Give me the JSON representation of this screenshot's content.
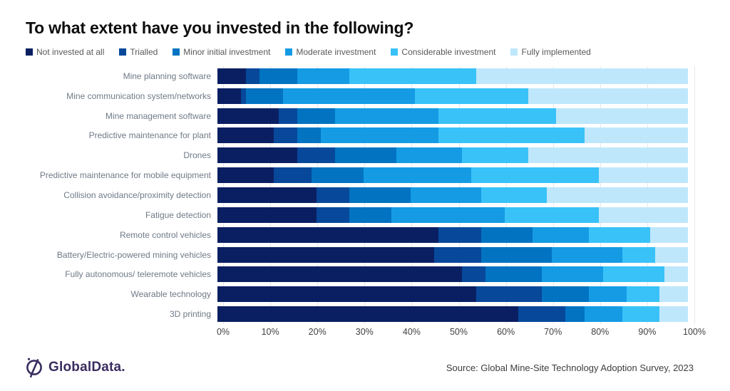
{
  "title": "To what extent have you invested in the following?",
  "chart_data": {
    "type": "bar",
    "variant": "horizontal-stacked",
    "unit": "%",
    "title": "To what extent have you invested in the following?",
    "xlabel": "",
    "ylabel": "",
    "xlim": [
      0,
      100
    ],
    "x_ticks": [
      "0%",
      "10%",
      "20%",
      "30%",
      "40%",
      "50%",
      "60%",
      "70%",
      "80%",
      "90%",
      "100%"
    ],
    "grid": "vertical",
    "legend_position": "top",
    "categories": [
      "Mine planning software",
      "Mine communication system/networks",
      "Mine management software",
      "Predictive maintenance for plant",
      "Drones",
      "Predictive maintenance for mobile equipment",
      "Collision avoidance/proximity detection",
      "Fatigue detection",
      "Remote control vehicles",
      "Battery/Electric-powered mining vehicles",
      "Fully autonomous/ teleremote vehicles",
      "Wearable technology",
      "3D printing"
    ],
    "series": [
      {
        "name": "Not invested at all",
        "color": "#0A1F62",
        "values": [
          6,
          5,
          13,
          12,
          17,
          12,
          21,
          21,
          47,
          46,
          52,
          55,
          64
        ]
      },
      {
        "name": "Trialled",
        "color": "#07489A",
        "values": [
          3,
          1,
          4,
          5,
          8,
          8,
          7,
          7,
          9,
          10,
          5,
          14,
          10
        ]
      },
      {
        "name": "Minor initial investment",
        "color": "#0173C1",
        "values": [
          8,
          8,
          8,
          5,
          13,
          11,
          13,
          9,
          11,
          15,
          12,
          10,
          4
        ]
      },
      {
        "name": "Moderate investment",
        "color": "#149BE4",
        "values": [
          11,
          28,
          22,
          25,
          14,
          23,
          15,
          24,
          12,
          15,
          13,
          8,
          8
        ]
      },
      {
        "name": "Considerable investment",
        "color": "#38C2F8",
        "values": [
          27,
          24,
          25,
          31,
          14,
          27,
          14,
          20,
          13,
          7,
          13,
          7,
          8
        ]
      },
      {
        "name": "Fully implemented",
        "color": "#BFE7FB",
        "values": [
          45,
          34,
          28,
          22,
          34,
          19,
          30,
          19,
          8,
          7,
          5,
          6,
          6
        ]
      }
    ]
  },
  "footer": {
    "brand": "GlobalData.",
    "brand_color": "#3a2d60",
    "source": "Source: Global Mine-Site Technology Adoption Survey, 2023"
  }
}
